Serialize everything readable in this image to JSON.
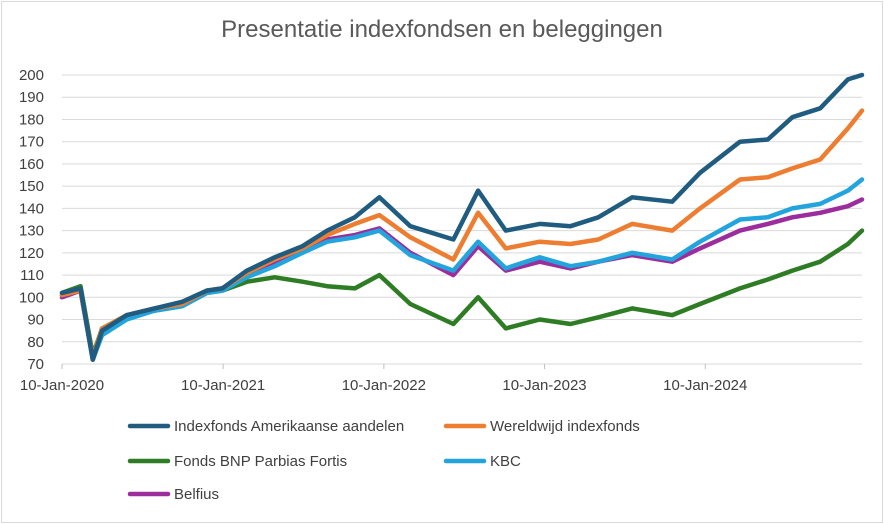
{
  "chart_data": {
    "type": "line",
    "title": "Presentatie indexfondsen en beleggingen",
    "xlabel": "",
    "ylabel": "",
    "ylim": [
      70,
      200
    ],
    "yticks": [
      70,
      80,
      90,
      100,
      110,
      120,
      130,
      140,
      150,
      160,
      170,
      180,
      190,
      200
    ],
    "xlim": [
      "2020-01-10",
      "2024-12-31"
    ],
    "xticks": [
      "10-Jan-2020",
      "10-Jan-2021",
      "10-Jan-2022",
      "10-Jan-2023",
      "10-Jan-2024"
    ],
    "x": [
      "2020-01-10",
      "2020-02-21",
      "2020-03-20",
      "2020-04-10",
      "2020-06-05",
      "2020-08-07",
      "2020-10-09",
      "2020-12-04",
      "2021-01-08",
      "2021-03-05",
      "2021-05-07",
      "2021-07-09",
      "2021-09-03",
      "2021-11-05",
      "2021-12-31",
      "2022-03-11",
      "2022-06-17",
      "2022-08-12",
      "2022-10-14",
      "2022-12-30",
      "2023-03-10",
      "2023-05-12",
      "2023-07-28",
      "2023-10-27",
      "2023-12-29",
      "2024-03-29",
      "2024-05-31",
      "2024-07-26",
      "2024-09-27",
      "2024-11-29",
      "2024-12-31"
    ],
    "series": [
      {
        "name": "Indexfonds Amerikaanse aandelen",
        "color": "#1f5c80",
        "values": [
          102,
          104,
          72,
          85,
          92,
          95,
          98,
          103,
          104,
          112,
          118,
          123,
          130,
          136,
          145,
          132,
          126,
          148,
          130,
          133,
          132,
          136,
          145,
          143,
          156,
          170,
          171,
          181,
          185,
          198,
          201
        ]
      },
      {
        "name": "Wereldwijd indexfonds",
        "color": "#ed7d31",
        "values": [
          101,
          103,
          73,
          86,
          92,
          95,
          97,
          103,
          104,
          111,
          117,
          122,
          128,
          133,
          137,
          127,
          117,
          138,
          122,
          125,
          124,
          126,
          133,
          130,
          140,
          153,
          154,
          158,
          162,
          176,
          184
        ]
      },
      {
        "name": "Fonds BNP Parbias Fortis",
        "color": "#2e7d24",
        "values": [
          102,
          105,
          74,
          86,
          91,
          94,
          96,
          102,
          103,
          107,
          109,
          107,
          105,
          104,
          110,
          97,
          88,
          100,
          86,
          90,
          88,
          91,
          95,
          92,
          97,
          104,
          108,
          112,
          116,
          124,
          130
        ]
      },
      {
        "name": "KBC",
        "color": "#23a4dc",
        "values": [
          101,
          103,
          72,
          83,
          90,
          94,
          96,
          102,
          103,
          109,
          114,
          120,
          125,
          127,
          130,
          119,
          112,
          125,
          113,
          118,
          114,
          116,
          120,
          117,
          125,
          135,
          136,
          140,
          142,
          148,
          153
        ]
      },
      {
        "name": "Belfius",
        "color": "#9b2d9c",
        "values": [
          100,
          103,
          72,
          84,
          91,
          94,
          97,
          103,
          104,
          111,
          115,
          121,
          126,
          128,
          131,
          120,
          110,
          123,
          112,
          116,
          113,
          116,
          119,
          116,
          122,
          130,
          133,
          136,
          138,
          141,
          144
        ]
      }
    ],
    "legend": "bottom"
  }
}
